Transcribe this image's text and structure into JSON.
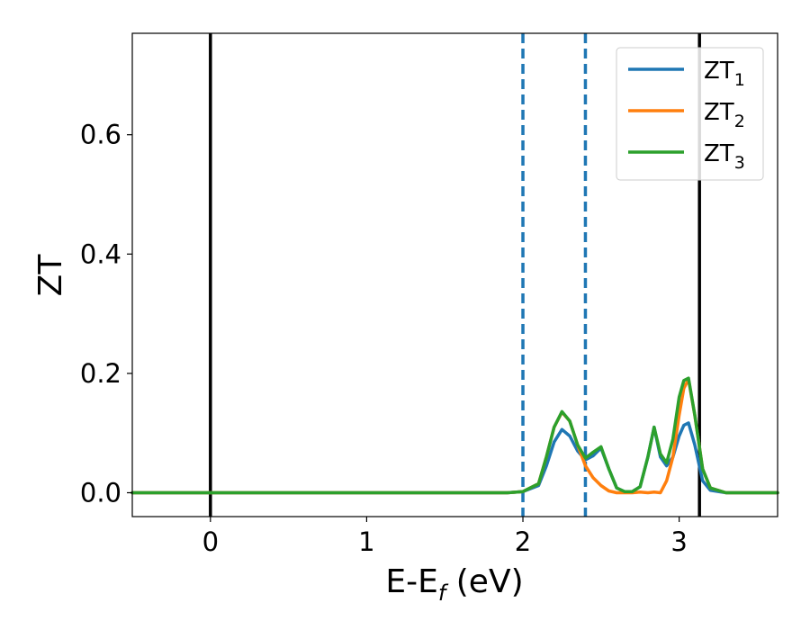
{
  "chart_data": {
    "type": "line",
    "xlabel": "E-E",
    "xlabel_sub": "f",
    "xlabel_unit": " (eV)",
    "ylabel": "ZT",
    "xlim": [
      -0.5,
      3.63
    ],
    "ylim": [
      -0.04,
      0.77
    ],
    "xticks": [
      0,
      1,
      2,
      3
    ],
    "yticks": [
      0.0,
      0.2,
      0.4,
      0.6
    ],
    "xtick_labels": [
      "0",
      "1",
      "2",
      "3"
    ],
    "ytick_labels": [
      "0.0",
      "0.2",
      "0.4",
      "0.6"
    ],
    "grid": false,
    "legend_position": "top-right",
    "vlines": [
      {
        "x": 0.0,
        "style": "solid",
        "color": "#000000"
      },
      {
        "x": 3.13,
        "style": "solid",
        "color": "#000000"
      },
      {
        "x": 2.0,
        "style": "dashed",
        "color": "#1f77b4"
      },
      {
        "x": 2.4,
        "style": "dashed",
        "color": "#1f77b4"
      }
    ],
    "series": [
      {
        "name": "ZT",
        "sub": "1",
        "color": "#1f77b4",
        "x": [
          -0.5,
          1.9,
          2.0,
          2.1,
          2.15,
          2.2,
          2.25,
          2.3,
          2.35,
          2.4,
          2.45,
          2.5,
          2.55,
          2.6,
          2.65,
          2.7,
          2.75,
          2.8,
          2.84,
          2.88,
          2.92,
          2.96,
          3.0,
          3.03,
          3.06,
          3.1,
          3.15,
          3.2,
          3.3,
          3.63
        ],
        "y": [
          0.0,
          0.0,
          0.002,
          0.012,
          0.045,
          0.085,
          0.106,
          0.095,
          0.07,
          0.055,
          0.062,
          0.075,
          0.04,
          0.008,
          0.002,
          0.002,
          0.01,
          0.06,
          0.11,
          0.06,
          0.045,
          0.06,
          0.095,
          0.113,
          0.117,
          0.08,
          0.02,
          0.004,
          0.0,
          0.0
        ]
      },
      {
        "name": "ZT",
        "sub": "2",
        "color": "#ff7f0e",
        "x": [
          -0.5,
          1.9,
          2.0,
          2.1,
          2.15,
          2.2,
          2.25,
          2.3,
          2.35,
          2.4,
          2.45,
          2.5,
          2.55,
          2.6,
          2.65,
          2.7,
          2.75,
          2.8,
          2.84,
          2.88,
          2.92,
          2.96,
          3.0,
          3.03,
          3.06,
          3.1,
          3.15,
          3.2,
          3.3,
          3.63
        ],
        "y": [
          0.0,
          0.0,
          0.002,
          0.015,
          0.06,
          0.11,
          0.135,
          0.12,
          0.08,
          0.045,
          0.025,
          0.012,
          0.003,
          0.0,
          0.0,
          0.0,
          0.001,
          0.0,
          0.001,
          0.0,
          0.02,
          0.06,
          0.13,
          0.175,
          0.19,
          0.13,
          0.04,
          0.008,
          0.0,
          0.0
        ]
      },
      {
        "name": "ZT",
        "sub": "3",
        "color": "#2ca02c",
        "x": [
          -0.5,
          1.9,
          2.0,
          2.1,
          2.15,
          2.2,
          2.25,
          2.3,
          2.35,
          2.4,
          2.45,
          2.5,
          2.55,
          2.6,
          2.65,
          2.7,
          2.75,
          2.8,
          2.84,
          2.88,
          2.92,
          2.96,
          3.0,
          3.03,
          3.06,
          3.1,
          3.15,
          3.2,
          3.3,
          3.63
        ],
        "y": [
          0.0,
          0.0,
          0.002,
          0.015,
          0.06,
          0.11,
          0.136,
          0.12,
          0.08,
          0.058,
          0.068,
          0.077,
          0.04,
          0.008,
          0.002,
          0.002,
          0.01,
          0.06,
          0.11,
          0.065,
          0.05,
          0.09,
          0.16,
          0.188,
          0.192,
          0.13,
          0.04,
          0.008,
          0.0,
          0.0
        ]
      }
    ]
  }
}
